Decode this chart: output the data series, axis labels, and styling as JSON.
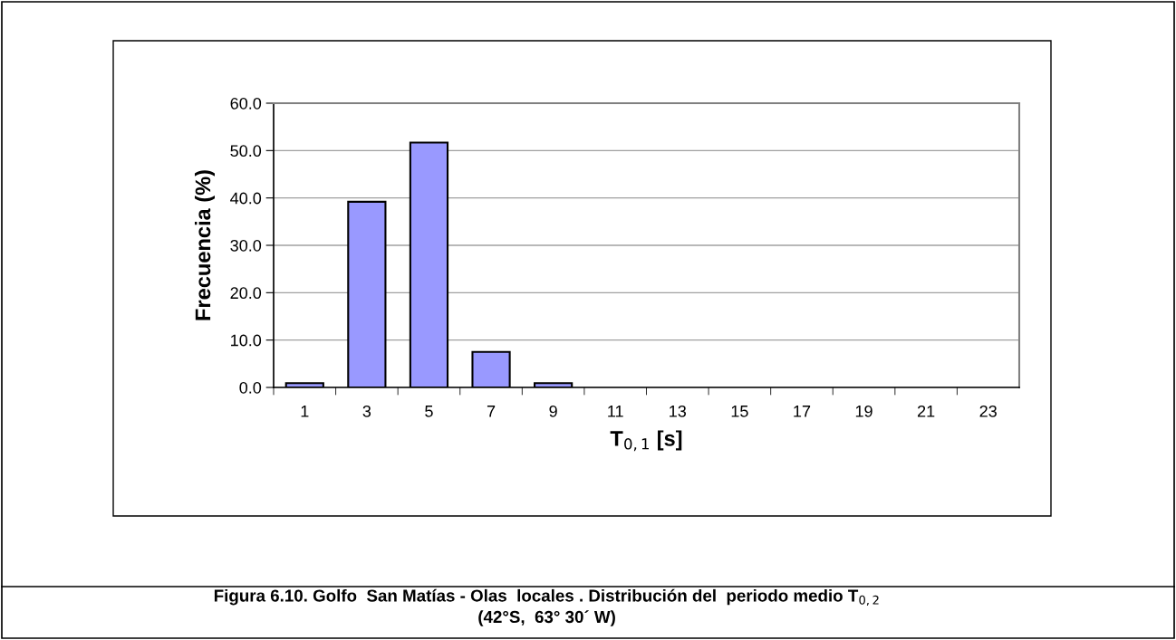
{
  "chart_data": {
    "type": "bar",
    "categories": [
      "1",
      "3",
      "5",
      "7",
      "9",
      "11",
      "13",
      "15",
      "17",
      "19",
      "21",
      "23"
    ],
    "values": [
      0.9,
      39.2,
      51.7,
      7.5,
      0.9,
      0,
      0,
      0,
      0,
      0,
      0,
      0
    ],
    "color": "#9999ff",
    "xlabel": "T$_{0,1}$ [s]",
    "ylabel": "Frecuencia (%)",
    "ylim": [
      0,
      60
    ],
    "yticks": [
      {
        "value": 0,
        "label": "0.0"
      },
      {
        "value": 10,
        "label": "10.0"
      },
      {
        "value": 20,
        "label": "20.0"
      },
      {
        "value": 30,
        "label": "30.0"
      },
      {
        "value": 40,
        "label": "40.0"
      },
      {
        "value": 50,
        "label": "50.0"
      },
      {
        "value": 60,
        "label": "60.0"
      }
    ],
    "grid": "y",
    "annotations": [
      "Figura 6.10. Golfo  San Matías - Olas  locales . Distribución del  periodo medio T$_{0,2}$",
      "(42°S,  63° 30´ W)"
    ]
  }
}
